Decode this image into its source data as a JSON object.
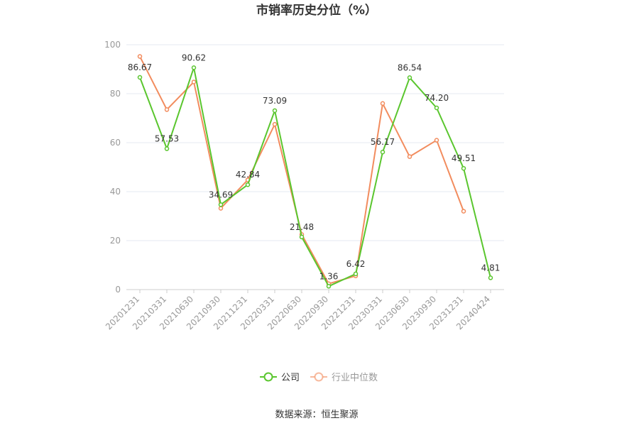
{
  "chart_data": {
    "type": "line",
    "title": "市销率历史分位（%）",
    "categories": [
      "20201231",
      "20210331",
      "20210630",
      "20210930",
      "20211231",
      "20220331",
      "20220630",
      "20220930",
      "20221231",
      "20230331",
      "20230630",
      "20230930",
      "20231231",
      "20240424"
    ],
    "ylim": [
      0,
      100
    ],
    "yticks": [
      "0",
      "20",
      "40",
      "60",
      "80",
      "100"
    ],
    "grid": true,
    "legend_position": "bottom",
    "series": [
      {
        "name": "公司",
        "color": "#5ac62e",
        "values": [
          86.67,
          57.53,
          90.62,
          34.69,
          42.84,
          73.09,
          21.48,
          1.36,
          6.42,
          56.17,
          86.54,
          74.2,
          49.51,
          4.81
        ],
        "labels": [
          "86.67",
          "57.53",
          "90.62",
          "34.69",
          "42.84",
          "73.09",
          "21.48",
          "1.36",
          "6.42",
          "56.17",
          "86.54",
          "74.20",
          "49.51",
          "4.81"
        ]
      },
      {
        "name": "行业中位数",
        "color": "#f28c5e",
        "values": [
          95.2,
          73.5,
          84.8,
          33.2,
          44.8,
          67.5,
          22.5,
          2.4,
          5.6,
          76.0,
          54.3,
          61.0,
          32.0,
          null
        ]
      }
    ]
  },
  "source": "数据来源：恒生聚源"
}
